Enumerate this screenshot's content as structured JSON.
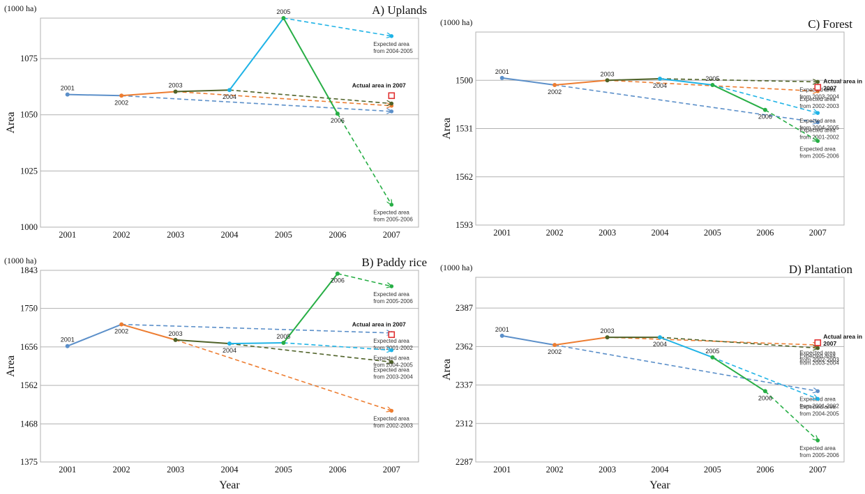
{
  "colors": {
    "c2001": "#5b8fc9",
    "c2002": "#ed7d31",
    "c2003": "#4f6228",
    "c2004": "#1fb3e6",
    "c2005": "#27ae45",
    "actual": "#e03030",
    "grid": "#b0b0b0"
  },
  "chart_data": [
    {
      "id": "a",
      "type": "line",
      "title": "A) Uplands",
      "unit": "(1000 ha)",
      "ylabel": "Area",
      "xlabel": "",
      "x": [
        "2001",
        "2002",
        "2003",
        "2004",
        "2005",
        "2006",
        "2007"
      ],
      "ylim": [
        1000,
        1093
      ],
      "yticks": [
        1000,
        1025,
        1050,
        1075
      ],
      "inverted": false,
      "grid": true,
      "observed": [
        {
          "x": "2001",
          "y": 1059,
          "label": "2001",
          "seg": "c2001"
        },
        {
          "x": "2002",
          "y": 1058.5,
          "label": "2002",
          "seg": "c2002"
        },
        {
          "x": "2003",
          "y": 1060.3,
          "label": "2003",
          "seg": "c2003"
        },
        {
          "x": "2004",
          "y": 1061,
          "label": "2004",
          "seg": "c2004"
        },
        {
          "x": "2005",
          "y": 1093,
          "label": "2005",
          "seg": "c2005"
        },
        {
          "x": "2006",
          "y": 1050.5,
          "label": "2006"
        }
      ],
      "expected": [
        {
          "from": "2002",
          "color": "c2001",
          "y2007": 1051.5
        },
        {
          "from": "2003",
          "color": "c2002",
          "y2007": 1054
        },
        {
          "from": "2004",
          "color": "c2003",
          "y2007": 1055
        },
        {
          "from": "2005",
          "color": "c2004",
          "y2007": 1085,
          "label": [
            "Expected area",
            "from 2004-2005"
          ]
        },
        {
          "from": "2006",
          "color": "c2005",
          "y2007": 1010,
          "label": [
            "Expected area",
            "from 2005-2006"
          ]
        }
      ],
      "actual": {
        "y": 1058.5,
        "label": [
          "Actual area in 2007"
        ]
      }
    },
    {
      "id": "c",
      "type": "line",
      "title": "C) Forest",
      "unit": "(1000 ha)",
      "ylabel": "Area",
      "xlabel": "",
      "x": [
        "2001",
        "2002",
        "2003",
        "2004",
        "2005",
        "2006",
        "2007"
      ],
      "ylim": [
        1593,
        1469
      ],
      "yticks": [
        1500,
        1531,
        1562,
        1593
      ],
      "inverted": true,
      "grid": true,
      "observed": [
        {
          "x": "2001",
          "y": 1498.5,
          "label": "2001",
          "seg": "c2001"
        },
        {
          "x": "2002",
          "y": 1503,
          "label": "2002",
          "seg": "c2002"
        },
        {
          "x": "2003",
          "y": 1500,
          "label": "2003",
          "seg": "c2003"
        },
        {
          "x": "2004",
          "y": 1499,
          "label": "2004",
          "seg": "c2004"
        },
        {
          "x": "2005",
          "y": 1503,
          "label": "2005",
          "seg": "c2005"
        },
        {
          "x": "2006",
          "y": 1519,
          "label": "2006"
        }
      ],
      "expected": [
        {
          "from": "2002",
          "color": "c2001",
          "y2007": 1527,
          "label": [
            "Expected area",
            "from 2001-2002"
          ]
        },
        {
          "from": "2003",
          "color": "c2002",
          "y2007": 1507,
          "label": [
            "Expected area",
            "from 2002-2003"
          ]
        },
        {
          "from": "2004",
          "color": "c2003",
          "y2007": 1501,
          "label": [
            "Expected area",
            "from 2003-2004"
          ]
        },
        {
          "from": "2005",
          "color": "c2004",
          "y2007": 1521,
          "label": [
            "Expected area",
            "from 2004-2005"
          ]
        },
        {
          "from": "2006",
          "color": "c2005",
          "y2007": 1539,
          "label": [
            "Expected area",
            "from 2005-2006"
          ]
        }
      ],
      "actual": {
        "y": 1504.5,
        "label": [
          "Actual area in",
          "2007"
        ]
      }
    },
    {
      "id": "b",
      "type": "line",
      "title": "B) Paddy rice",
      "unit": "(1000 ha)",
      "ylabel": "Area",
      "xlabel": "Year",
      "x": [
        "2001",
        "2002",
        "2003",
        "2004",
        "2005",
        "2006",
        "2007"
      ],
      "ylim": [
        1375,
        1843
      ],
      "yticks": [
        1375,
        1468,
        1562,
        1656,
        1750,
        1843
      ],
      "inverted": false,
      "grid": true,
      "observed": [
        {
          "x": "2001",
          "y": 1658,
          "label": "2001",
          "seg": "c2001"
        },
        {
          "x": "2002",
          "y": 1711,
          "label": "2002",
          "seg": "c2002"
        },
        {
          "x": "2003",
          "y": 1673,
          "label": "2003",
          "seg": "c2003"
        },
        {
          "x": "2004",
          "y": 1664,
          "label": "2004",
          "seg": "c2004"
        },
        {
          "x": "2005",
          "y": 1666,
          "label": "2005",
          "seg": "c2005"
        },
        {
          "x": "2006",
          "y": 1835,
          "label": "2006"
        }
      ],
      "expected": [
        {
          "from": "2002",
          "color": "c2001",
          "y2007": 1690,
          "label": [
            "Expected area",
            "from 2001-2002"
          ]
        },
        {
          "from": "2003",
          "color": "c2002",
          "y2007": 1500,
          "label": [
            "Expected area",
            "from 2002-2003"
          ]
        },
        {
          "from": "2004",
          "color": "c2003",
          "y2007": 1619,
          "label": [
            "Expected area",
            "from 2003-2004"
          ]
        },
        {
          "from": "2005",
          "color": "c2004",
          "y2007": 1648,
          "label": [
            "Expected area",
            "from 2004-2005"
          ]
        },
        {
          "from": "2006",
          "color": "c2005",
          "y2007": 1804,
          "label": [
            "Expected area",
            "from 2005-2006"
          ]
        }
      ],
      "actual": {
        "y": 1686,
        "label": [
          "Actual area in 2007"
        ]
      }
    },
    {
      "id": "d",
      "type": "line",
      "title": "D) Plantation",
      "unit": "(1000 ha)",
      "ylabel": "Area",
      "xlabel": "Year",
      "x": [
        "2001",
        "2002",
        "2003",
        "2004",
        "2005",
        "2006",
        "2007"
      ],
      "ylim": [
        2287,
        2407
      ],
      "yticks": [
        2287,
        2312,
        2337,
        2362,
        2387
      ],
      "inverted": false,
      "grid": true,
      "observed": [
        {
          "x": "2001",
          "y": 2369,
          "label": "2001",
          "seg": "c2001"
        },
        {
          "x": "2002",
          "y": 2363,
          "label": "2002",
          "seg": "c2002"
        },
        {
          "x": "2003",
          "y": 2368,
          "label": "2003",
          "seg": "c2003"
        },
        {
          "x": "2004",
          "y": 2368,
          "label": "2004",
          "seg": "c2004"
        },
        {
          "x": "2005",
          "y": 2355,
          "label": "2005",
          "seg": "c2005"
        },
        {
          "x": "2006",
          "y": 2333,
          "label": "2006"
        }
      ],
      "expected": [
        {
          "from": "2002",
          "color": "c2001",
          "y2007": 2333,
          "label": [
            "Expected area",
            "from 2001-2002"
          ]
        },
        {
          "from": "2003",
          "color": "c2002",
          "y2007": 2363,
          "label": [
            "Expected area",
            "from 2002-2003"
          ]
        },
        {
          "from": "2004",
          "color": "c2003",
          "y2007": 2361,
          "label": [
            "Expected area",
            "from 2003-2004"
          ]
        },
        {
          "from": "2005",
          "color": "c2004",
          "y2007": 2328,
          "label": [
            "Expected area",
            "from 2004-2005"
          ]
        },
        {
          "from": "2006",
          "color": "c2005",
          "y2007": 2301,
          "label": [
            "Expected area",
            "from 2005-2006"
          ]
        }
      ],
      "actual": {
        "y": 2364.5,
        "label": [
          "Actual area in",
          "2007"
        ]
      }
    }
  ]
}
